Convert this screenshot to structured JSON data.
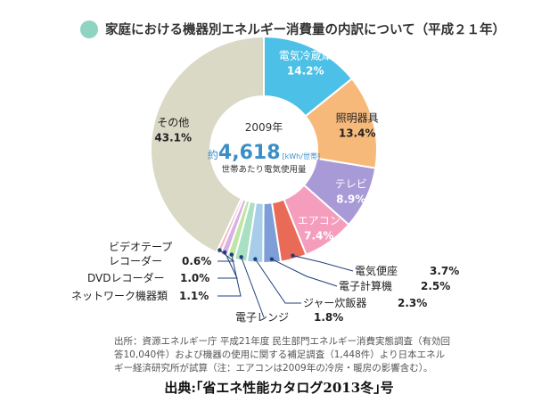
{
  "title": "家庭における機器別エネルギー消費量の内訳について（平成２１年）",
  "center": {
    "year": "2009年",
    "prefix": "約",
    "value": "4,618",
    "unit": "[kWh/世帯]",
    "label": "世帯あたり電気使用量"
  },
  "chart_data": {
    "type": "pie",
    "title": "家庭における機器別エネルギー消費量の内訳について（平成２１年）",
    "unit": "%",
    "slices": [
      {
        "name": "電気冷蔵庫",
        "value": 14.2,
        "value_label": "14.2%",
        "color": "#4cc0e6"
      },
      {
        "name": "照明器具",
        "value": 13.4,
        "value_label": "13.4%",
        "color": "#f7b97a"
      },
      {
        "name": "テレビ",
        "value": 8.9,
        "value_label": "8.9%",
        "color": "#a89ad6"
      },
      {
        "name": "エアコン",
        "value": 7.4,
        "value_label": "7.4%",
        "color": "#f59dbd"
      },
      {
        "name": "電気便座",
        "value": 3.7,
        "value_label": "3.7%",
        "color": "#e96a56"
      },
      {
        "name": "電子計算機",
        "value": 2.5,
        "value_label": "2.5%",
        "color": "#7d9ed6"
      },
      {
        "name": "ジャー炊飯器",
        "value": 2.3,
        "value_label": "2.3%",
        "color": "#a7cdea"
      },
      {
        "name": "電子レンジ",
        "value": 1.8,
        "value_label": "1.8%",
        "color": "#a9dfc2"
      },
      {
        "name": "ネットワーク機器類",
        "value": 1.1,
        "value_label": "1.1%",
        "color": "#bfe6a5"
      },
      {
        "name": "DVDレコーダー",
        "value": 1.0,
        "value_label": "1.0%",
        "color": "#dab0e2"
      },
      {
        "name": "ビデオテープレコーダー",
        "value": 0.6,
        "value_label": "0.6%",
        "color": "#f3b6cb"
      },
      {
        "name": "その他",
        "value": 43.1,
        "value_label": "43.1%",
        "color": "#d9d9c6"
      }
    ]
  },
  "outside_labels": {
    "benza": {
      "name": "電気便座",
      "value": "3.7%"
    },
    "keisanki": {
      "name": "電子計算機",
      "value": "2.5%"
    },
    "jar": {
      "name": "ジャー炊飯器",
      "value": "2.3%"
    },
    "renji": {
      "name": "電子レンジ",
      "value": "1.8%"
    },
    "network": {
      "name": "ネットワーク機器類",
      "value": "1.1%"
    },
    "dvd": {
      "name": "DVDレコーダー",
      "value": "1.0%"
    },
    "video_line1": "ビデオテープ",
    "video_line2": "レコーダー",
    "video_value": "0.6%"
  },
  "source": "出所：資源エネルギー庁 平成21年度 民生部門エネルギー消費実態調査（有効回答10,040件）および機器の使用に関する補足調査（1,448件）より日本エネルギー経済研究所が試算（注：エアコンは2009年の冷房・暖房の影響含む）。",
  "caption": "出典:｢省エネ性能カタログ2013冬｣号"
}
